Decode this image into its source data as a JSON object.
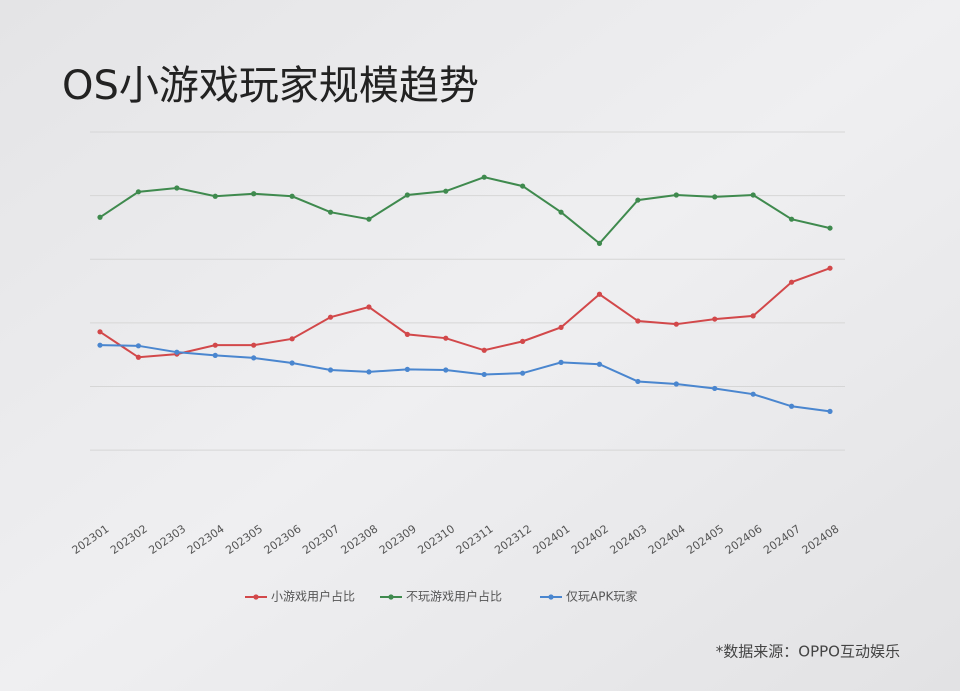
{
  "chart_data": {
    "type": "line",
    "title": "OS小游戏玩家规模趋势",
    "categories": [
      "202301",
      "202302",
      "202303",
      "202304",
      "202305",
      "202306",
      "202307",
      "202308",
      "202309",
      "202310",
      "202311",
      "202312",
      "202401",
      "202402",
      "202403",
      "202404",
      "202405",
      "202406",
      "202407",
      "202408"
    ],
    "series": [
      {
        "name": "小游戏用户占比",
        "color": "#d2484a",
        "values": [
          18.6,
          14.6,
          15.1,
          16.5,
          16.5,
          17.5,
          20.9,
          22.5,
          18.2,
          17.6,
          15.7,
          17.1,
          19.3,
          24.5,
          20.3,
          19.8,
          20.6,
          21.1,
          26.4,
          28.6
        ]
      },
      {
        "name": "不玩游戏用户占比",
        "color": "#3f8a4e",
        "values": [
          36.6,
          40.6,
          41.2,
          39.9,
          40.3,
          39.9,
          37.4,
          36.3,
          40.1,
          40.7,
          42.9,
          41.5,
          37.4,
          32.5,
          39.3,
          40.1,
          39.8,
          40.1,
          36.3,
          34.9
        ]
      },
      {
        "name": "仅玩APK玩家",
        "color": "#4a86cf",
        "values": [
          16.5,
          16.4,
          15.4,
          14.9,
          14.5,
          13.7,
          12.6,
          12.3,
          12.7,
          12.6,
          11.9,
          12.1,
          13.8,
          13.5,
          10.8,
          10.4,
          9.7,
          8.8,
          6.9,
          6.1
        ]
      }
    ],
    "ylim": [
      -9.4,
      50
    ],
    "yticks": [
      0,
      10,
      20,
      30,
      40,
      50
    ],
    "grid": true,
    "legend": "bottom",
    "source": "*数据来源：OPPO互动娱乐"
  }
}
